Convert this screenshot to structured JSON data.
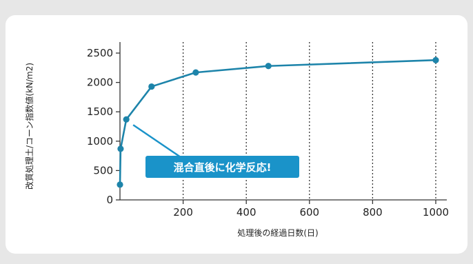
{
  "chart_data": {
    "type": "line",
    "x": [
      0,
      2,
      20,
      100,
      240,
      470,
      1000
    ],
    "values": [
      260,
      870,
      1370,
      1930,
      2170,
      2280,
      2380
    ],
    "xlabel": "処理後の経過日数(日)",
    "ylabel": "改質処理土/コーン指数値(kN/m2)",
    "xlim": [
      0,
      1040
    ],
    "ylim": [
      0,
      2500
    ],
    "xticks": [
      200,
      400,
      600,
      800,
      1000
    ],
    "yticks": [
      0,
      500,
      1000,
      1500,
      2000,
      2500
    ],
    "xtick_labels": [
      "200",
      "400",
      "600",
      "800",
      "1000"
    ],
    "ytick_labels": [
      "0",
      "500",
      "1000",
      "1500",
      "2000",
      "2500"
    ],
    "grid": "vertical dotted lines",
    "line_color": "#1d84aa",
    "annotation": {
      "text": "混合直後に化学反応!",
      "points_to_x": 20,
      "points_to_y": 1370,
      "box_color": "#1a93c9"
    }
  }
}
